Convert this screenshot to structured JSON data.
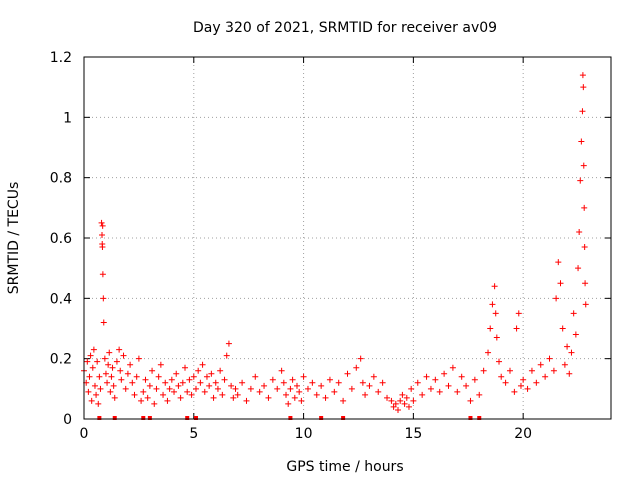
{
  "chart_data": {
    "type": "scatter",
    "title": "Day 320 of 2021, SRMTID for receiver av09",
    "xlabel": "GPS time / hours",
    "ylabel": "SRMTID / TECUs",
    "xlim": [
      0,
      24
    ],
    "ylim": [
      0,
      1.2
    ],
    "grid": true,
    "marker": "+",
    "color": "#ff0000",
    "x_ticks": [
      {
        "value": 0,
        "label": "0"
      },
      {
        "value": 5,
        "label": "5"
      },
      {
        "value": 10,
        "label": "10"
      },
      {
        "value": 15,
        "label": "15"
      },
      {
        "value": 20,
        "label": "20"
      }
    ],
    "y_ticks": [
      {
        "value": 0,
        "label": "0"
      },
      {
        "value": 0.2,
        "label": "0.2"
      },
      {
        "value": 0.4,
        "label": "0.4"
      },
      {
        "value": 0.6,
        "label": "0.6"
      },
      {
        "value": 0.8,
        "label": "0.8"
      },
      {
        "value": 1.0,
        "label": "1"
      },
      {
        "value": 1.2,
        "label": "1.2"
      }
    ],
    "series": [
      {
        "name": "SRMTID",
        "points": [
          [
            0.0,
            0.16
          ],
          [
            0.1,
            0.12
          ],
          [
            0.15,
            0.19
          ],
          [
            0.2,
            0.09
          ],
          [
            0.25,
            0.14
          ],
          [
            0.3,
            0.21
          ],
          [
            0.35,
            0.06
          ],
          [
            0.4,
            0.17
          ],
          [
            0.45,
            0.23
          ],
          [
            0.5,
            0.11
          ],
          [
            0.55,
            0.08
          ],
          [
            0.6,
            0.19
          ],
          [
            0.65,
            0.05
          ],
          [
            0.7,
            0.14
          ],
          [
            0.75,
            0.1
          ],
          [
            0.8,
            0.65
          ],
          [
            0.82,
            0.61
          ],
          [
            0.84,
            0.57
          ],
          [
            0.86,
            0.48
          ],
          [
            0.88,
            0.4
          ],
          [
            0.9,
            0.32
          ],
          [
            0.85,
            0.64
          ],
          [
            0.83,
            0.58
          ],
          [
            0.95,
            0.2
          ],
          [
            1.0,
            0.15
          ],
          [
            1.05,
            0.12
          ],
          [
            1.1,
            0.18
          ],
          [
            1.15,
            0.22
          ],
          [
            1.2,
            0.09
          ],
          [
            1.25,
            0.14
          ],
          [
            1.3,
            0.17
          ],
          [
            1.35,
            0.11
          ],
          [
            1.4,
            0.07
          ],
          [
            1.5,
            0.19
          ],
          [
            1.6,
            0.23
          ],
          [
            1.65,
            0.16
          ],
          [
            1.7,
            0.13
          ],
          [
            1.8,
            0.21
          ],
          [
            1.9,
            0.1
          ],
          [
            2.0,
            0.15
          ],
          [
            2.1,
            0.18
          ],
          [
            2.2,
            0.12
          ],
          [
            2.3,
            0.08
          ],
          [
            2.4,
            0.14
          ],
          [
            2.5,
            0.2
          ],
          [
            2.6,
            0.06
          ],
          [
            2.7,
            0.09
          ],
          [
            2.8,
            0.13
          ],
          [
            2.9,
            0.07
          ],
          [
            3.0,
            0.11
          ],
          [
            3.1,
            0.16
          ],
          [
            3.2,
            0.05
          ],
          [
            3.3,
            0.1
          ],
          [
            3.4,
            0.14
          ],
          [
            3.5,
            0.18
          ],
          [
            3.6,
            0.08
          ],
          [
            3.7,
            0.12
          ],
          [
            3.8,
            0.06
          ],
          [
            3.9,
            0.1
          ],
          [
            4.0,
            0.13
          ],
          [
            4.1,
            0.09
          ],
          [
            4.2,
            0.15
          ],
          [
            4.3,
            0.11
          ],
          [
            4.4,
            0.07
          ],
          [
            4.5,
            0.12
          ],
          [
            4.6,
            0.17
          ],
          [
            4.7,
            0.09
          ],
          [
            4.8,
            0.13
          ],
          [
            4.9,
            0.08
          ],
          [
            5.0,
            0.14
          ],
          [
            5.1,
            0.1
          ],
          [
            5.2,
            0.16
          ],
          [
            5.3,
            0.12
          ],
          [
            5.4,
            0.18
          ],
          [
            5.5,
            0.09
          ],
          [
            5.6,
            0.14
          ],
          [
            5.7,
            0.11
          ],
          [
            5.8,
            0.15
          ],
          [
            5.9,
            0.07
          ],
          [
            6.0,
            0.12
          ],
          [
            6.1,
            0.1
          ],
          [
            6.2,
            0.16
          ],
          [
            6.3,
            0.08
          ],
          [
            6.4,
            0.13
          ],
          [
            6.5,
            0.21
          ],
          [
            6.6,
            0.25
          ],
          [
            6.7,
            0.11
          ],
          [
            6.8,
            0.07
          ],
          [
            6.9,
            0.1
          ],
          [
            7.0,
            0.08
          ],
          [
            7.2,
            0.12
          ],
          [
            7.4,
            0.06
          ],
          [
            7.6,
            0.1
          ],
          [
            7.8,
            0.14
          ],
          [
            8.0,
            0.09
          ],
          [
            8.2,
            0.11
          ],
          [
            8.4,
            0.07
          ],
          [
            8.6,
            0.13
          ],
          [
            8.8,
            0.1
          ],
          [
            9.0,
            0.16
          ],
          [
            9.1,
            0.12
          ],
          [
            9.2,
            0.08
          ],
          [
            9.3,
            0.05
          ],
          [
            9.4,
            0.1
          ],
          [
            9.5,
            0.13
          ],
          [
            9.6,
            0.07
          ],
          [
            9.7,
            0.11
          ],
          [
            9.8,
            0.09
          ],
          [
            9.9,
            0.06
          ],
          [
            10.0,
            0.14
          ],
          [
            10.2,
            0.1
          ],
          [
            10.4,
            0.12
          ],
          [
            10.6,
            0.08
          ],
          [
            10.8,
            0.11
          ],
          [
            11.0,
            0.07
          ],
          [
            11.2,
            0.13
          ],
          [
            11.4,
            0.09
          ],
          [
            11.6,
            0.12
          ],
          [
            11.8,
            0.06
          ],
          [
            12.0,
            0.15
          ],
          [
            12.2,
            0.1
          ],
          [
            12.4,
            0.17
          ],
          [
            12.6,
            0.2
          ],
          [
            12.7,
            0.12
          ],
          [
            12.8,
            0.08
          ],
          [
            13.0,
            0.11
          ],
          [
            13.2,
            0.14
          ],
          [
            13.4,
            0.09
          ],
          [
            13.6,
            0.12
          ],
          [
            13.8,
            0.07
          ],
          [
            14.0,
            0.06
          ],
          [
            14.1,
            0.04
          ],
          [
            14.2,
            0.05
          ],
          [
            14.3,
            0.03
          ],
          [
            14.4,
            0.06
          ],
          [
            14.5,
            0.08
          ],
          [
            14.6,
            0.05
          ],
          [
            14.7,
            0.07
          ],
          [
            14.8,
            0.04
          ],
          [
            14.9,
            0.1
          ],
          [
            15.0,
            0.06
          ],
          [
            15.2,
            0.12
          ],
          [
            15.4,
            0.08
          ],
          [
            15.6,
            0.14
          ],
          [
            15.8,
            0.1
          ],
          [
            16.0,
            0.13
          ],
          [
            16.2,
            0.09
          ],
          [
            16.4,
            0.15
          ],
          [
            16.6,
            0.11
          ],
          [
            16.8,
            0.17
          ],
          [
            17.0,
            0.09
          ],
          [
            17.2,
            0.14
          ],
          [
            17.4,
            0.11
          ],
          [
            17.6,
            0.06
          ],
          [
            17.8,
            0.13
          ],
          [
            18.0,
            0.08
          ],
          [
            18.2,
            0.16
          ],
          [
            18.4,
            0.22
          ],
          [
            18.5,
            0.3
          ],
          [
            18.6,
            0.38
          ],
          [
            18.7,
            0.44
          ],
          [
            18.75,
            0.35
          ],
          [
            18.8,
            0.27
          ],
          [
            18.9,
            0.19
          ],
          [
            19.0,
            0.14
          ],
          [
            19.2,
            0.12
          ],
          [
            19.4,
            0.16
          ],
          [
            19.6,
            0.09
          ],
          [
            19.7,
            0.3
          ],
          [
            19.8,
            0.35
          ],
          [
            19.9,
            0.11
          ],
          [
            20.0,
            0.13
          ],
          [
            20.2,
            0.1
          ],
          [
            20.4,
            0.16
          ],
          [
            20.6,
            0.12
          ],
          [
            20.8,
            0.18
          ],
          [
            21.0,
            0.14
          ],
          [
            21.2,
            0.2
          ],
          [
            21.4,
            0.16
          ],
          [
            21.5,
            0.4
          ],
          [
            21.6,
            0.52
          ],
          [
            21.7,
            0.45
          ],
          [
            21.8,
            0.3
          ],
          [
            21.9,
            0.18
          ],
          [
            22.0,
            0.24
          ],
          [
            22.1,
            0.15
          ],
          [
            22.2,
            0.22
          ],
          [
            22.3,
            0.35
          ],
          [
            22.4,
            0.28
          ],
          [
            22.5,
            0.5
          ],
          [
            22.55,
            0.62
          ],
          [
            22.6,
            0.79
          ],
          [
            22.65,
            0.92
          ],
          [
            22.7,
            1.02
          ],
          [
            22.72,
            1.14
          ],
          [
            22.74,
            1.1
          ],
          [
            22.76,
            0.84
          ],
          [
            22.78,
            0.7
          ],
          [
            22.8,
            0.57
          ],
          [
            22.82,
            0.45
          ],
          [
            22.85,
            0.38
          ]
        ]
      }
    ],
    "baseline_markers_x": [
      0.7,
      1.4,
      2.7,
      3.0,
      4.7,
      5.1,
      9.4,
      10.8,
      11.8,
      17.6,
      18.0
    ]
  }
}
